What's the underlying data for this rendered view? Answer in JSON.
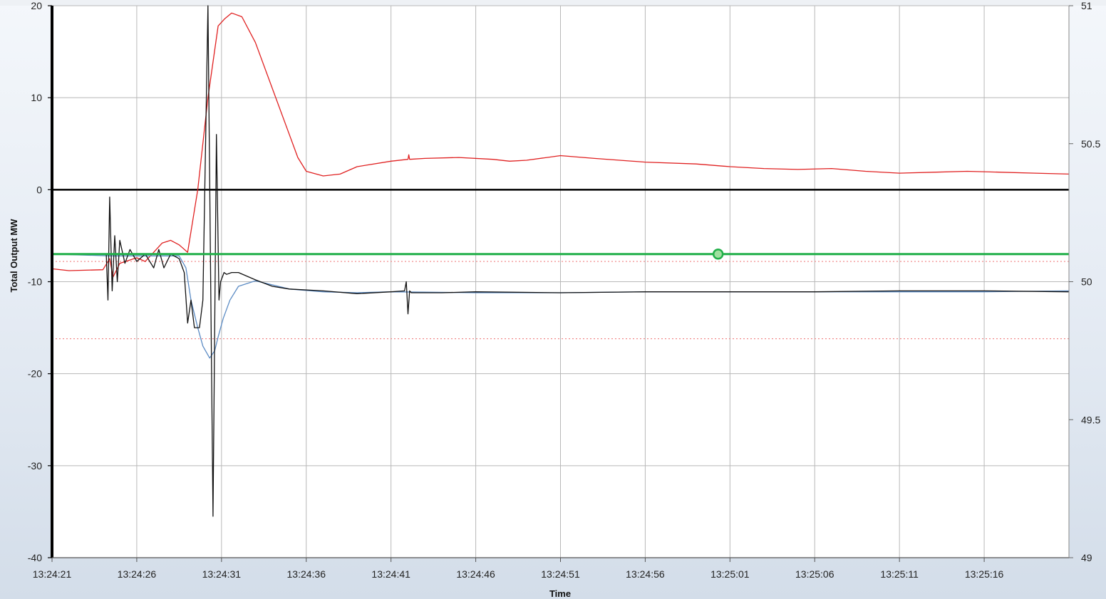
{
  "chart_data": {
    "type": "line",
    "title": "",
    "xlabel": "Time",
    "ylabel": "Total Output MW",
    "y2label": "",
    "xlim": [
      0,
      60
    ],
    "ylim": [
      -40,
      20
    ],
    "y2lim": [
      49,
      51
    ],
    "x_tick_values": [
      0,
      5,
      10,
      15,
      20,
      25,
      30,
      35,
      40,
      45,
      50,
      55
    ],
    "x_tick_labels": [
      "13:24:21",
      "13:24:26",
      "13:24:31",
      "13:24:36",
      "13:24:41",
      "13:24:46",
      "13:24:51",
      "13:24:56",
      "13:25:01",
      "13:25:06",
      "13:25:11",
      "13:25:16"
    ],
    "y_ticks": [
      20,
      10,
      0,
      -10,
      -20,
      -30,
      -40
    ],
    "y_tick_labels": [
      "20",
      "10",
      "0",
      "-10",
      "-20",
      "-30",
      "-40"
    ],
    "y2_ticks": [
      51,
      50.5,
      50,
      49.5,
      49
    ],
    "y2_tick_labels": [
      "51",
      "50.5",
      "50",
      "49.5",
      "49"
    ],
    "grid": true,
    "series": [
      {
        "axis": "left",
        "color": "#e02020",
        "x": [
          0,
          1,
          3,
          3.4,
          3.6,
          4,
          5,
          5.5,
          6,
          6.5,
          7,
          7.5,
          8,
          8.6,
          9.2,
          9.8,
          10.2,
          10.6,
          11.2,
          12,
          13,
          14,
          14.5,
          15,
          16,
          17,
          18,
          20,
          21,
          21.05,
          21.1,
          22,
          24,
          26,
          27,
          28,
          30,
          32,
          35,
          38,
          40,
          42,
          44,
          46,
          48,
          50,
          52,
          54,
          56,
          58,
          60
        ],
        "y": [
          -8.6,
          -8.8,
          -8.7,
          -7.5,
          -9.5,
          -8.0,
          -7.4,
          -7.8,
          -6.8,
          -5.8,
          -5.5,
          -6.0,
          -6.8,
          0,
          10,
          17.8,
          18.6,
          19.2,
          18.8,
          16,
          11,
          6,
          3.5,
          2,
          1.5,
          1.7,
          2.5,
          3.1,
          3.3,
          3.8,
          3.3,
          3.4,
          3.5,
          3.3,
          3.1,
          3.2,
          3.7,
          3.4,
          3.0,
          2.8,
          2.5,
          2.3,
          2.2,
          2.3,
          2.0,
          1.8,
          1.9,
          2.0,
          1.9,
          1.8,
          1.7
        ]
      },
      {
        "axis": "left",
        "color": "#5b8bc4",
        "x": [
          0,
          3.5,
          7.5,
          7.9,
          8.2,
          8.6,
          8.9,
          9.3,
          9.6,
          9.8,
          10.1,
          10.5,
          11,
          12,
          14,
          16,
          18,
          20,
          25,
          30,
          35,
          40,
          45,
          50,
          55,
          60
        ],
        "y": [
          -7.0,
          -7.2,
          -7.2,
          -8.5,
          -12,
          -15,
          -17,
          -18.3,
          -17.5,
          -16,
          -14,
          -12,
          -10.5,
          -9.9,
          -10.8,
          -11.1,
          -11.2,
          -11.1,
          -11.2,
          -11.2,
          -11.1,
          -11.1,
          -11.1,
          -11.1,
          -11.1,
          -11.0
        ]
      },
      {
        "axis": "left",
        "color": "#111111",
        "x": [
          0,
          3.2,
          3.3,
          3.4,
          3.55,
          3.7,
          3.85,
          4.0,
          4.3,
          4.6,
          5.0,
          5.5,
          6.0,
          6.3,
          6.6,
          7.0,
          7.5,
          7.8,
          8.0,
          8.2,
          8.4,
          8.7,
          8.9,
          9.2,
          9.5,
          9.7,
          9.85,
          9.95,
          10.05,
          10.15,
          10.3,
          10.6,
          11,
          12,
          13,
          14,
          16,
          18,
          20,
          20.8,
          20.9,
          21.0,
          21.1,
          21.2,
          23,
          25,
          30,
          35,
          40,
          45,
          50,
          55,
          60
        ],
        "y": [
          -7.0,
          -7.0,
          -12,
          -0.8,
          -11,
          -5,
          -10,
          -5.5,
          -8,
          -6.5,
          -7.8,
          -7,
          -8.5,
          -6.5,
          -8.5,
          -7,
          -7.5,
          -9,
          -14.5,
          -12,
          -15,
          -15,
          -12,
          20,
          -35.5,
          6,
          -12,
          -10,
          -9.5,
          -9,
          -9.2,
          -9.0,
          -9.0,
          -9.8,
          -10.5,
          -10.8,
          -11.0,
          -11.3,
          -11.1,
          -11.0,
          -10.0,
          -13.5,
          -11.0,
          -11.2,
          -11.2,
          -11.1,
          -11.2,
          -11.1,
          -11.1,
          -11.1,
          -11.0,
          -11.0,
          -11.1
        ]
      },
      {
        "axis": "left",
        "color": "#22b04a",
        "x": [
          0,
          60
        ],
        "y": [
          -7,
          -7
        ]
      }
    ],
    "reference_lines": [
      {
        "axis": "left",
        "y": -7.8,
        "color": "#f08080",
        "style": "dotted"
      },
      {
        "axis": "left",
        "y": -16.2,
        "color": "#f08080",
        "style": "dotted"
      },
      {
        "axis": "left",
        "y": 0,
        "color": "#000000",
        "style": "solid"
      }
    ],
    "markers": [
      {
        "axis": "left",
        "x": 39.3,
        "y": -7,
        "color": "#22b04a",
        "fill": "#9fe0a0"
      }
    ]
  }
}
